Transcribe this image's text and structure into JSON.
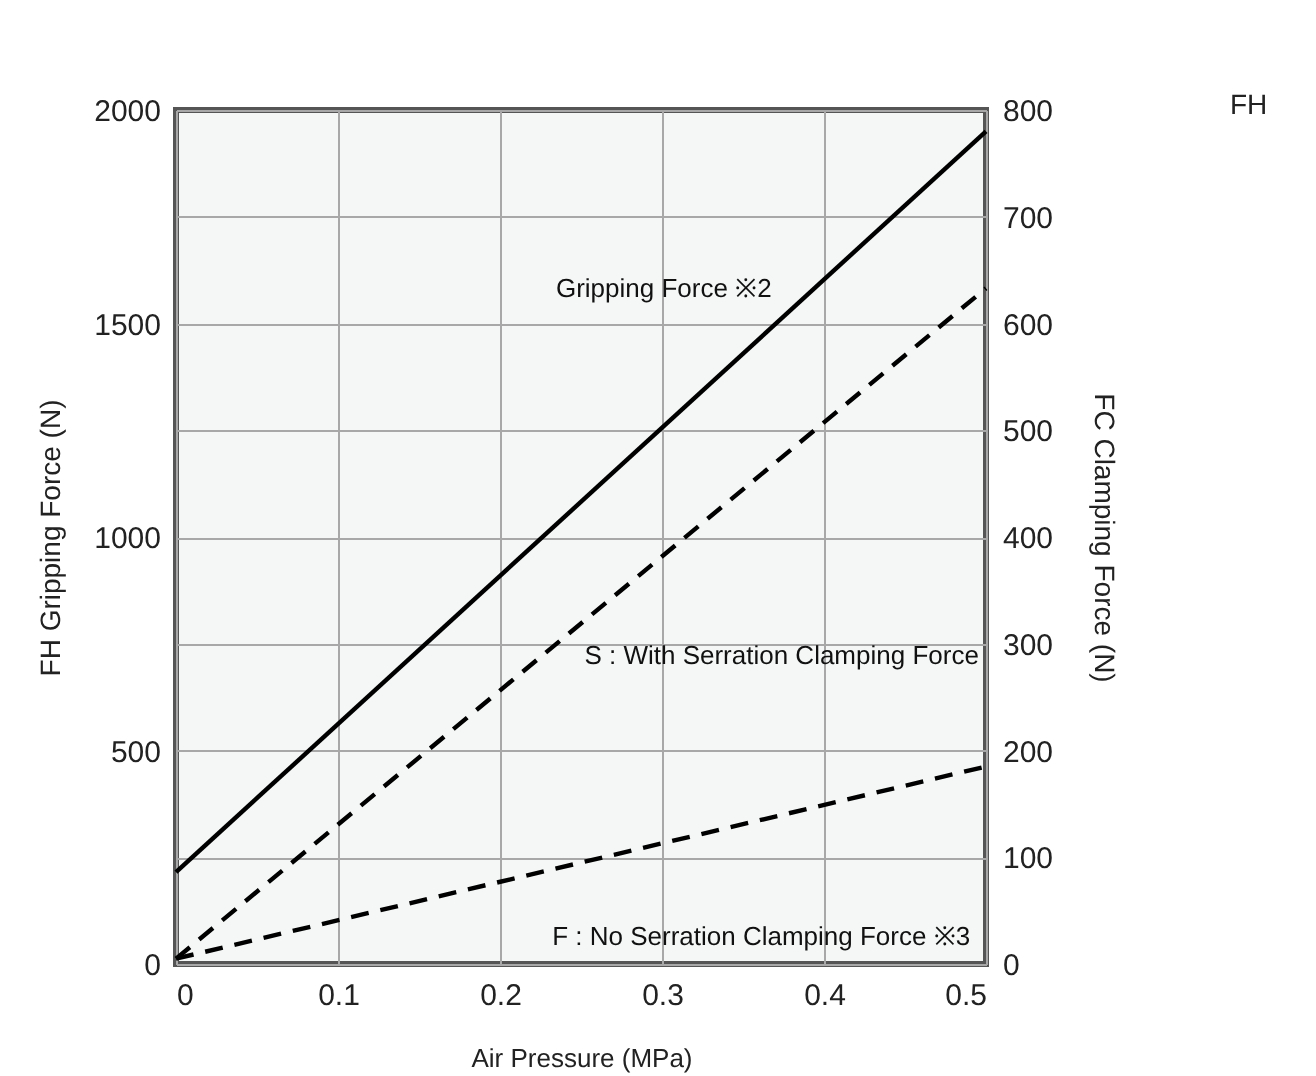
{
  "chart_data": {
    "type": "line",
    "xlabel": "Air Pressure (MPa)",
    "ylabel": "FH Gripping Force (N)",
    "y2label": "FC Clamping Force (N)",
    "x": [
      0,
      0.5
    ],
    "series": [
      {
        "color": "#000000",
        "values": [
          215,
          1950
        ],
        "line_style": "solid"
      },
      {
        "color": "#000000",
        "values": [
          5,
          633
        ],
        "axis": "y2",
        "line_style": "dashed"
      },
      {
        "color": "#000000",
        "values": [
          5,
          185
        ],
        "axis": "y2",
        "line_style": "dashed"
      }
    ],
    "xlim": [
      0,
      0.5
    ],
    "xticks": [
      0,
      0.1,
      0.2,
      0.3,
      0.4,
      0.5
    ],
    "ylim": [
      0,
      2000
    ],
    "yticks": [
      0,
      {
        "value": 250,
        "label": null
      },
      500,
      {
        "value": 750,
        "label": null
      },
      1000,
      {
        "value": 1250,
        "label": null
      },
      1500,
      {
        "value": 1750,
        "label": null
      },
      2000
    ],
    "y2lim": [
      0,
      800
    ],
    "y2ticks": [
      0,
      100,
      200,
      300,
      400,
      500,
      600,
      700,
      800
    ],
    "grid": true,
    "legend": false,
    "marker": "none",
    "annotations": [
      {
        "text": "Gripping Force ※2",
        "x": 0.38,
        "y": 1534
      },
      {
        "text": "S : With Serration Clamping Force",
        "x": 0.22,
        "y": 703
      },
      {
        "text": "F : No Serration Clamping Force ※3",
        "x": 0.21,
        "y": 203
      },
      "FH"
    ]
  }
}
